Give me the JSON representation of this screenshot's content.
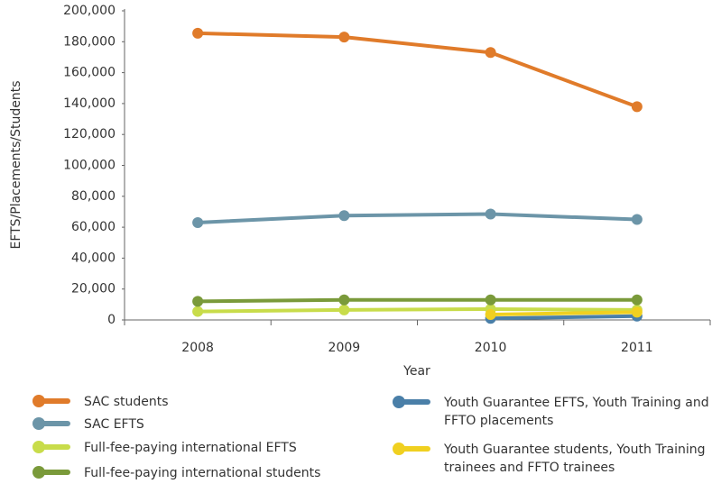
{
  "chart_data": {
    "type": "line",
    "x_label": "Year",
    "y_label": "EFTS/Placements/Students",
    "categories": [
      "2008",
      "2009",
      "2010",
      "2011"
    ],
    "ylim": [
      0,
      200000
    ],
    "yticks": [
      {
        "value": 0,
        "label": "0"
      },
      {
        "value": 20000,
        "label": "20,000"
      },
      {
        "value": 40000,
        "label": "40,000"
      },
      {
        "value": 60000,
        "label": "60,000"
      },
      {
        "value": 80000,
        "label": "80,000"
      },
      {
        "value": 100000,
        "label": "100,000"
      },
      {
        "value": 120000,
        "label": "120,000"
      },
      {
        "value": 140000,
        "label": "140,000"
      },
      {
        "value": 160000,
        "label": "160,000"
      },
      {
        "value": 180000,
        "label": "180,000"
      },
      {
        "value": 200000,
        "label": "200,000"
      }
    ],
    "series": [
      {
        "name": "SAC students",
        "color": "#e07b2a",
        "values": [
          185500,
          183000,
          173000,
          138000
        ]
      },
      {
        "name": "SAC EFTS",
        "color": "#6c95a8",
        "values": [
          63000,
          67500,
          68500,
          65000
        ]
      },
      {
        "name": "Full-fee-paying international EFTS",
        "color": "#c8dc4a",
        "values": [
          5500,
          6500,
          7000,
          6500
        ]
      },
      {
        "name": "Full-fee-paying international students",
        "color": "#7a9a3a",
        "values": [
          12000,
          13000,
          13000,
          13000
        ]
      },
      {
        "name": "Youth Guarantee EFTS, Youth Training and FFTO placements",
        "color": "#4a7fa8",
        "values": [
          null,
          null,
          1000,
          2500
        ]
      },
      {
        "name": "Youth Guarantee students, Youth Training trainees and FFTO trainees",
        "color": "#f0d020",
        "values": [
          null,
          null,
          3500,
          5000
        ]
      }
    ]
  }
}
